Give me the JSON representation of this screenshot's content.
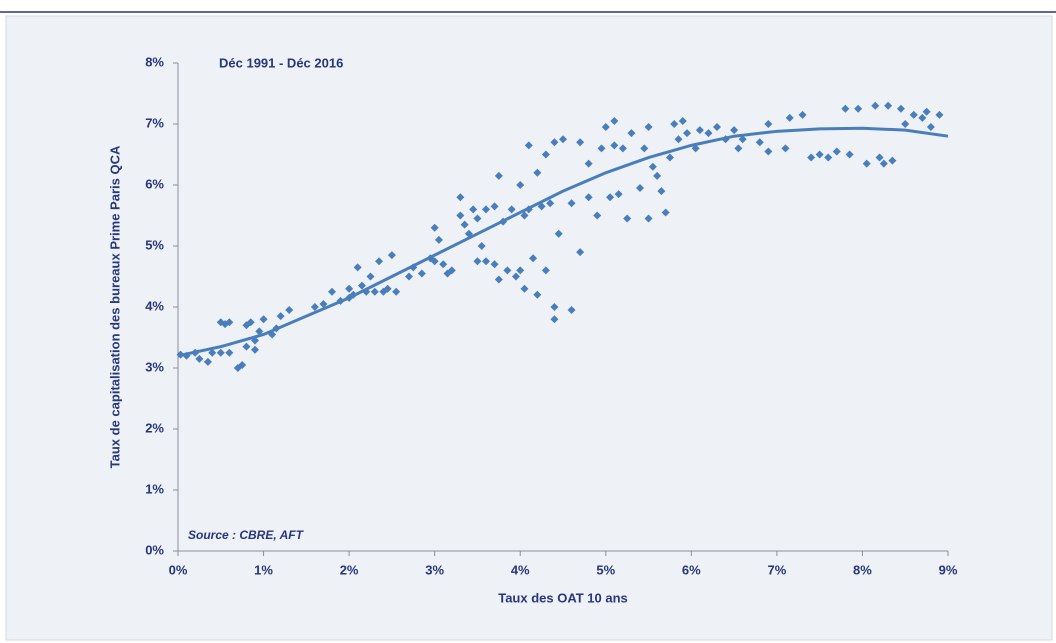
{
  "chart_data": {
    "type": "scatter",
    "annotation": "Déc 1991  - Déc 2016",
    "source": "Source : CBRE, AFT",
    "x_label": "Taux des OAT 10 ans",
    "y_label": "Taux de capitalisation des bureaux Prime Paris QCA",
    "color": "#4a7ebb",
    "x": [
      0.03,
      0.1,
      0.2,
      0.25,
      0.35,
      0.4,
      0.5,
      0.5,
      0.55,
      0.6,
      0.6,
      0.7,
      0.75,
      0.8,
      0.8,
      0.85,
      0.9,
      0.9,
      0.95,
      1.0,
      1.1,
      1.15,
      1.2,
      1.3,
      1.6,
      1.7,
      1.8,
      1.9,
      2.0,
      2.0,
      2.05,
      2.1,
      2.15,
      2.2,
      2.25,
      2.3,
      2.35,
      2.4,
      2.45,
      2.5,
      2.55,
      2.7,
      2.75,
      2.85,
      2.95,
      3.0,
      3.0,
      3.05,
      3.1,
      3.15,
      3.2,
      3.3,
      3.3,
      3.35,
      3.4,
      3.45,
      3.5,
      3.5,
      3.55,
      3.6,
      3.6,
      3.7,
      3.7,
      3.75,
      3.75,
      3.8,
      3.85,
      3.9,
      3.95,
      4.0,
      4.0,
      4.05,
      4.05,
      4.1,
      4.1,
      4.15,
      4.2,
      4.25,
      4.3,
      4.35,
      4.4,
      4.4,
      4.4,
      4.45,
      4.5,
      4.3,
      4.2,
      4.6,
      4.6,
      4.7,
      4.7,
      4.8,
      4.8,
      4.9,
      4.95,
      5.0,
      5.05,
      5.1,
      5.1,
      5.15,
      5.2,
      5.25,
      5.3,
      5.4,
      5.45,
      5.5,
      5.5,
      5.55,
      5.6,
      5.65,
      5.7,
      5.75,
      5.8,
      5.85,
      5.9,
      5.95,
      6.05,
      6.1,
      6.2,
      6.3,
      6.4,
      6.5,
      6.55,
      6.6,
      6.8,
      6.9,
      6.9,
      7.1,
      7.15,
      7.3,
      7.4,
      7.5,
      7.6,
      7.7,
      7.8,
      7.85,
      7.95,
      8.05,
      8.15,
      8.2,
      8.25,
      8.3,
      8.35,
      8.45,
      8.5,
      8.6,
      8.7,
      8.75,
      8.8,
      8.9
    ],
    "y": [
      3.22,
      3.2,
      3.25,
      3.15,
      3.1,
      3.25,
      3.25,
      3.75,
      3.72,
      3.25,
      3.75,
      3.0,
      3.05,
      3.35,
      3.7,
      3.75,
      3.3,
      3.45,
      3.6,
      3.8,
      3.55,
      3.65,
      3.85,
      3.95,
      4.0,
      4.05,
      4.25,
      4.1,
      4.15,
      4.3,
      4.2,
      4.65,
      4.35,
      4.25,
      4.5,
      4.25,
      4.75,
      4.25,
      4.3,
      4.85,
      4.25,
      4.5,
      4.65,
      4.55,
      4.8,
      4.75,
      5.3,
      5.1,
      4.7,
      4.55,
      4.6,
      5.8,
      5.5,
      5.35,
      5.2,
      5.6,
      5.45,
      4.75,
      5.0,
      4.75,
      5.6,
      5.65,
      4.7,
      4.45,
      6.15,
      5.4,
      4.6,
      5.6,
      4.5,
      6.0,
      4.6,
      5.5,
      4.3,
      5.6,
      6.65,
      4.8,
      6.2,
      5.65,
      4.6,
      5.7,
      3.8,
      4.0,
      6.7,
      5.2,
      6.75,
      6.5,
      4.2,
      5.7,
      3.95,
      4.9,
      6.7,
      6.35,
      5.8,
      5.5,
      6.6,
      6.95,
      5.8,
      6.65,
      7.05,
      5.85,
      6.6,
      5.45,
      6.85,
      5.95,
      6.6,
      6.95,
      5.45,
      6.3,
      6.15,
      5.9,
      5.55,
      6.45,
      7.0,
      6.75,
      7.05,
      6.85,
      6.6,
      6.9,
      6.85,
      6.95,
      6.75,
      6.9,
      6.6,
      6.75,
      6.7,
      6.55,
      7.0,
      6.6,
      7.1,
      7.15,
      6.45,
      6.5,
      6.45,
      6.55,
      7.25,
      6.5,
      7.25,
      6.35,
      7.3,
      6.45,
      6.35,
      7.3,
      6.4,
      7.25,
      7.0,
      7.15,
      7.1,
      7.2,
      6.95,
      7.15
    ],
    "trend": {
      "color": "#4a7ebb",
      "x": [
        0,
        0.5,
        1,
        1.5,
        2,
        2.5,
        3,
        3.5,
        4,
        4.5,
        5,
        5.5,
        6,
        6.5,
        7,
        7.5,
        8,
        8.5,
        9
      ],
      "y": [
        3.2,
        3.35,
        3.55,
        3.85,
        4.15,
        4.5,
        4.85,
        5.2,
        5.55,
        5.9,
        6.2,
        6.45,
        6.65,
        6.8,
        6.88,
        6.92,
        6.93,
        6.9,
        6.8
      ]
    },
    "xlim": [
      0,
      9
    ],
    "ylim": [
      0,
      8
    ],
    "xticks": [
      {
        "value": 0,
        "label": "0%"
      },
      {
        "value": 1,
        "label": "1%"
      },
      {
        "value": 2,
        "label": "2%"
      },
      {
        "value": 3,
        "label": "3%"
      },
      {
        "value": 4,
        "label": "4%"
      },
      {
        "value": 5,
        "label": "5%"
      },
      {
        "value": 6,
        "label": "6%"
      },
      {
        "value": 7,
        "label": "7%"
      },
      {
        "value": 8,
        "label": "8%"
      },
      {
        "value": 9,
        "label": "9%"
      }
    ],
    "yticks": [
      {
        "value": 0,
        "label": "0%"
      },
      {
        "value": 1,
        "label": "1%"
      },
      {
        "value": 2,
        "label": "2%"
      },
      {
        "value": 3,
        "label": "3%"
      },
      {
        "value": 4,
        "label": "4%"
      },
      {
        "value": 5,
        "label": "5%"
      },
      {
        "value": 6,
        "label": "6%"
      },
      {
        "value": 7,
        "label": "7%"
      },
      {
        "value": 8,
        "label": "8%"
      }
    ],
    "grid": false
  }
}
